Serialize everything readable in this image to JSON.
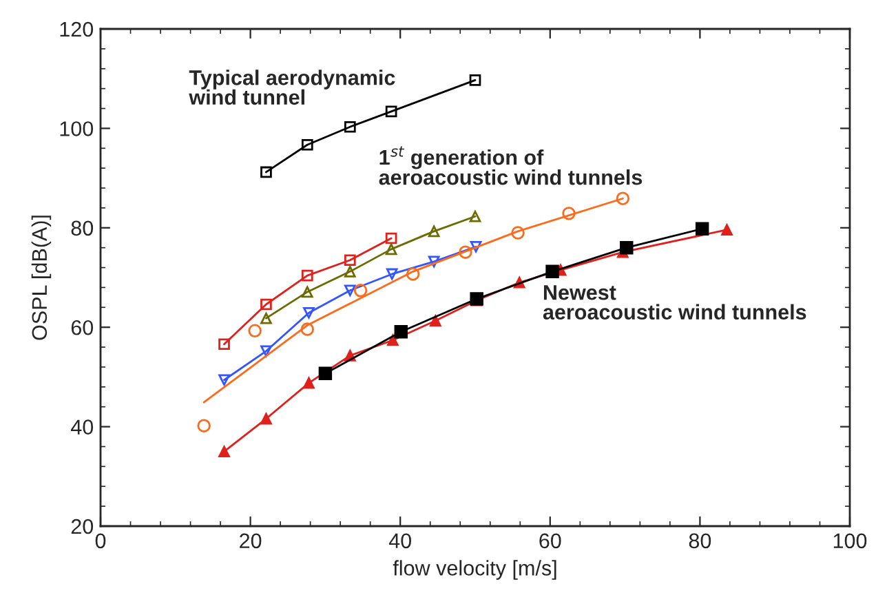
{
  "chart_data": {
    "type": "line",
    "xlabel": "flow velocity [m/s]",
    "ylabel": "OSPL [dB(A)]",
    "xlim": [
      0,
      100
    ],
    "ylim": [
      20,
      120
    ],
    "xticks": [
      0,
      20,
      40,
      60,
      80,
      100
    ],
    "yticks": [
      20,
      40,
      60,
      80,
      100,
      120
    ],
    "grid": false,
    "legend": false,
    "annotations": [
      "Typical aerodynamic\nwind tunnel",
      "1$^{st}$ generation of\naeroacoustic wind tunnels",
      "Newest\naeroacoustic wind tunnels"
    ],
    "series": [
      {
        "color": "#000000",
        "marker": "square",
        "x": [
          22.1,
          27.6,
          33.3,
          38.8,
          50
        ],
        "values": [
          91.2,
          96.7,
          100.3,
          103.4,
          109.7
        ]
      },
      {
        "color": "#e0201b",
        "marker": "square",
        "x": [
          16.5,
          22.1,
          27.6,
          33.3,
          38.8
        ],
        "values": [
          56.6,
          64.6,
          70.4,
          73.5,
          77.9
        ]
      },
      {
        "color": "#6b6b00",
        "marker": "triangle",
        "x": [
          22.1,
          27.6,
          33.3,
          38.8,
          44.5,
          50
        ],
        "values": [
          61.8,
          67.1,
          71.2,
          75.7,
          79.3,
          82.3
        ]
      },
      {
        "color": "#3355ff",
        "marker": "triangle-down",
        "x": [
          16.5,
          22.1,
          27.8,
          33.3,
          38.9,
          44.5,
          50.1
        ],
        "values": [
          49.4,
          55.2,
          62.9,
          67.4,
          70.7,
          73.2,
          76.2
        ]
      },
      {
        "type": "scatter",
        "color": "#ff6a1a",
        "marker": "circle",
        "x": [
          13.8,
          20.6,
          27.6,
          34.7,
          41.7,
          48.7,
          55.7,
          62.5,
          69.7
        ],
        "values": [
          40.2,
          59.3,
          59.6,
          67.4,
          70.7,
          75.1,
          79.0,
          82.9,
          85.9
        ]
      },
      {
        "color": "#ff6a1a",
        "marker": "none",
        "x": [
          13.8,
          27.6,
          41.7,
          55.7,
          69.7
        ],
        "values": [
          44.9,
          60.4,
          71.2,
          79.3,
          85.9
        ]
      },
      {
        "color": "#000000",
        "marker": "square-filled",
        "x": [
          30,
          40.1,
          50.2,
          60.3,
          70.2,
          80.3
        ],
        "values": [
          50.7,
          59.1,
          65.7,
          71.2,
          76.0,
          79.8
        ]
      },
      {
        "color": "#e0201b",
        "marker": "triangle-filled",
        "x": [
          16.5,
          22.1,
          27.8,
          33.3,
          39,
          44.7,
          50.2,
          55.9,
          61.4,
          69.7,
          83.6
        ],
        "values": [
          35.0,
          41.6,
          48.8,
          54.3,
          57.4,
          61.3,
          65.4,
          69.0,
          71.5,
          75.1,
          79.6
        ]
      }
    ]
  }
}
